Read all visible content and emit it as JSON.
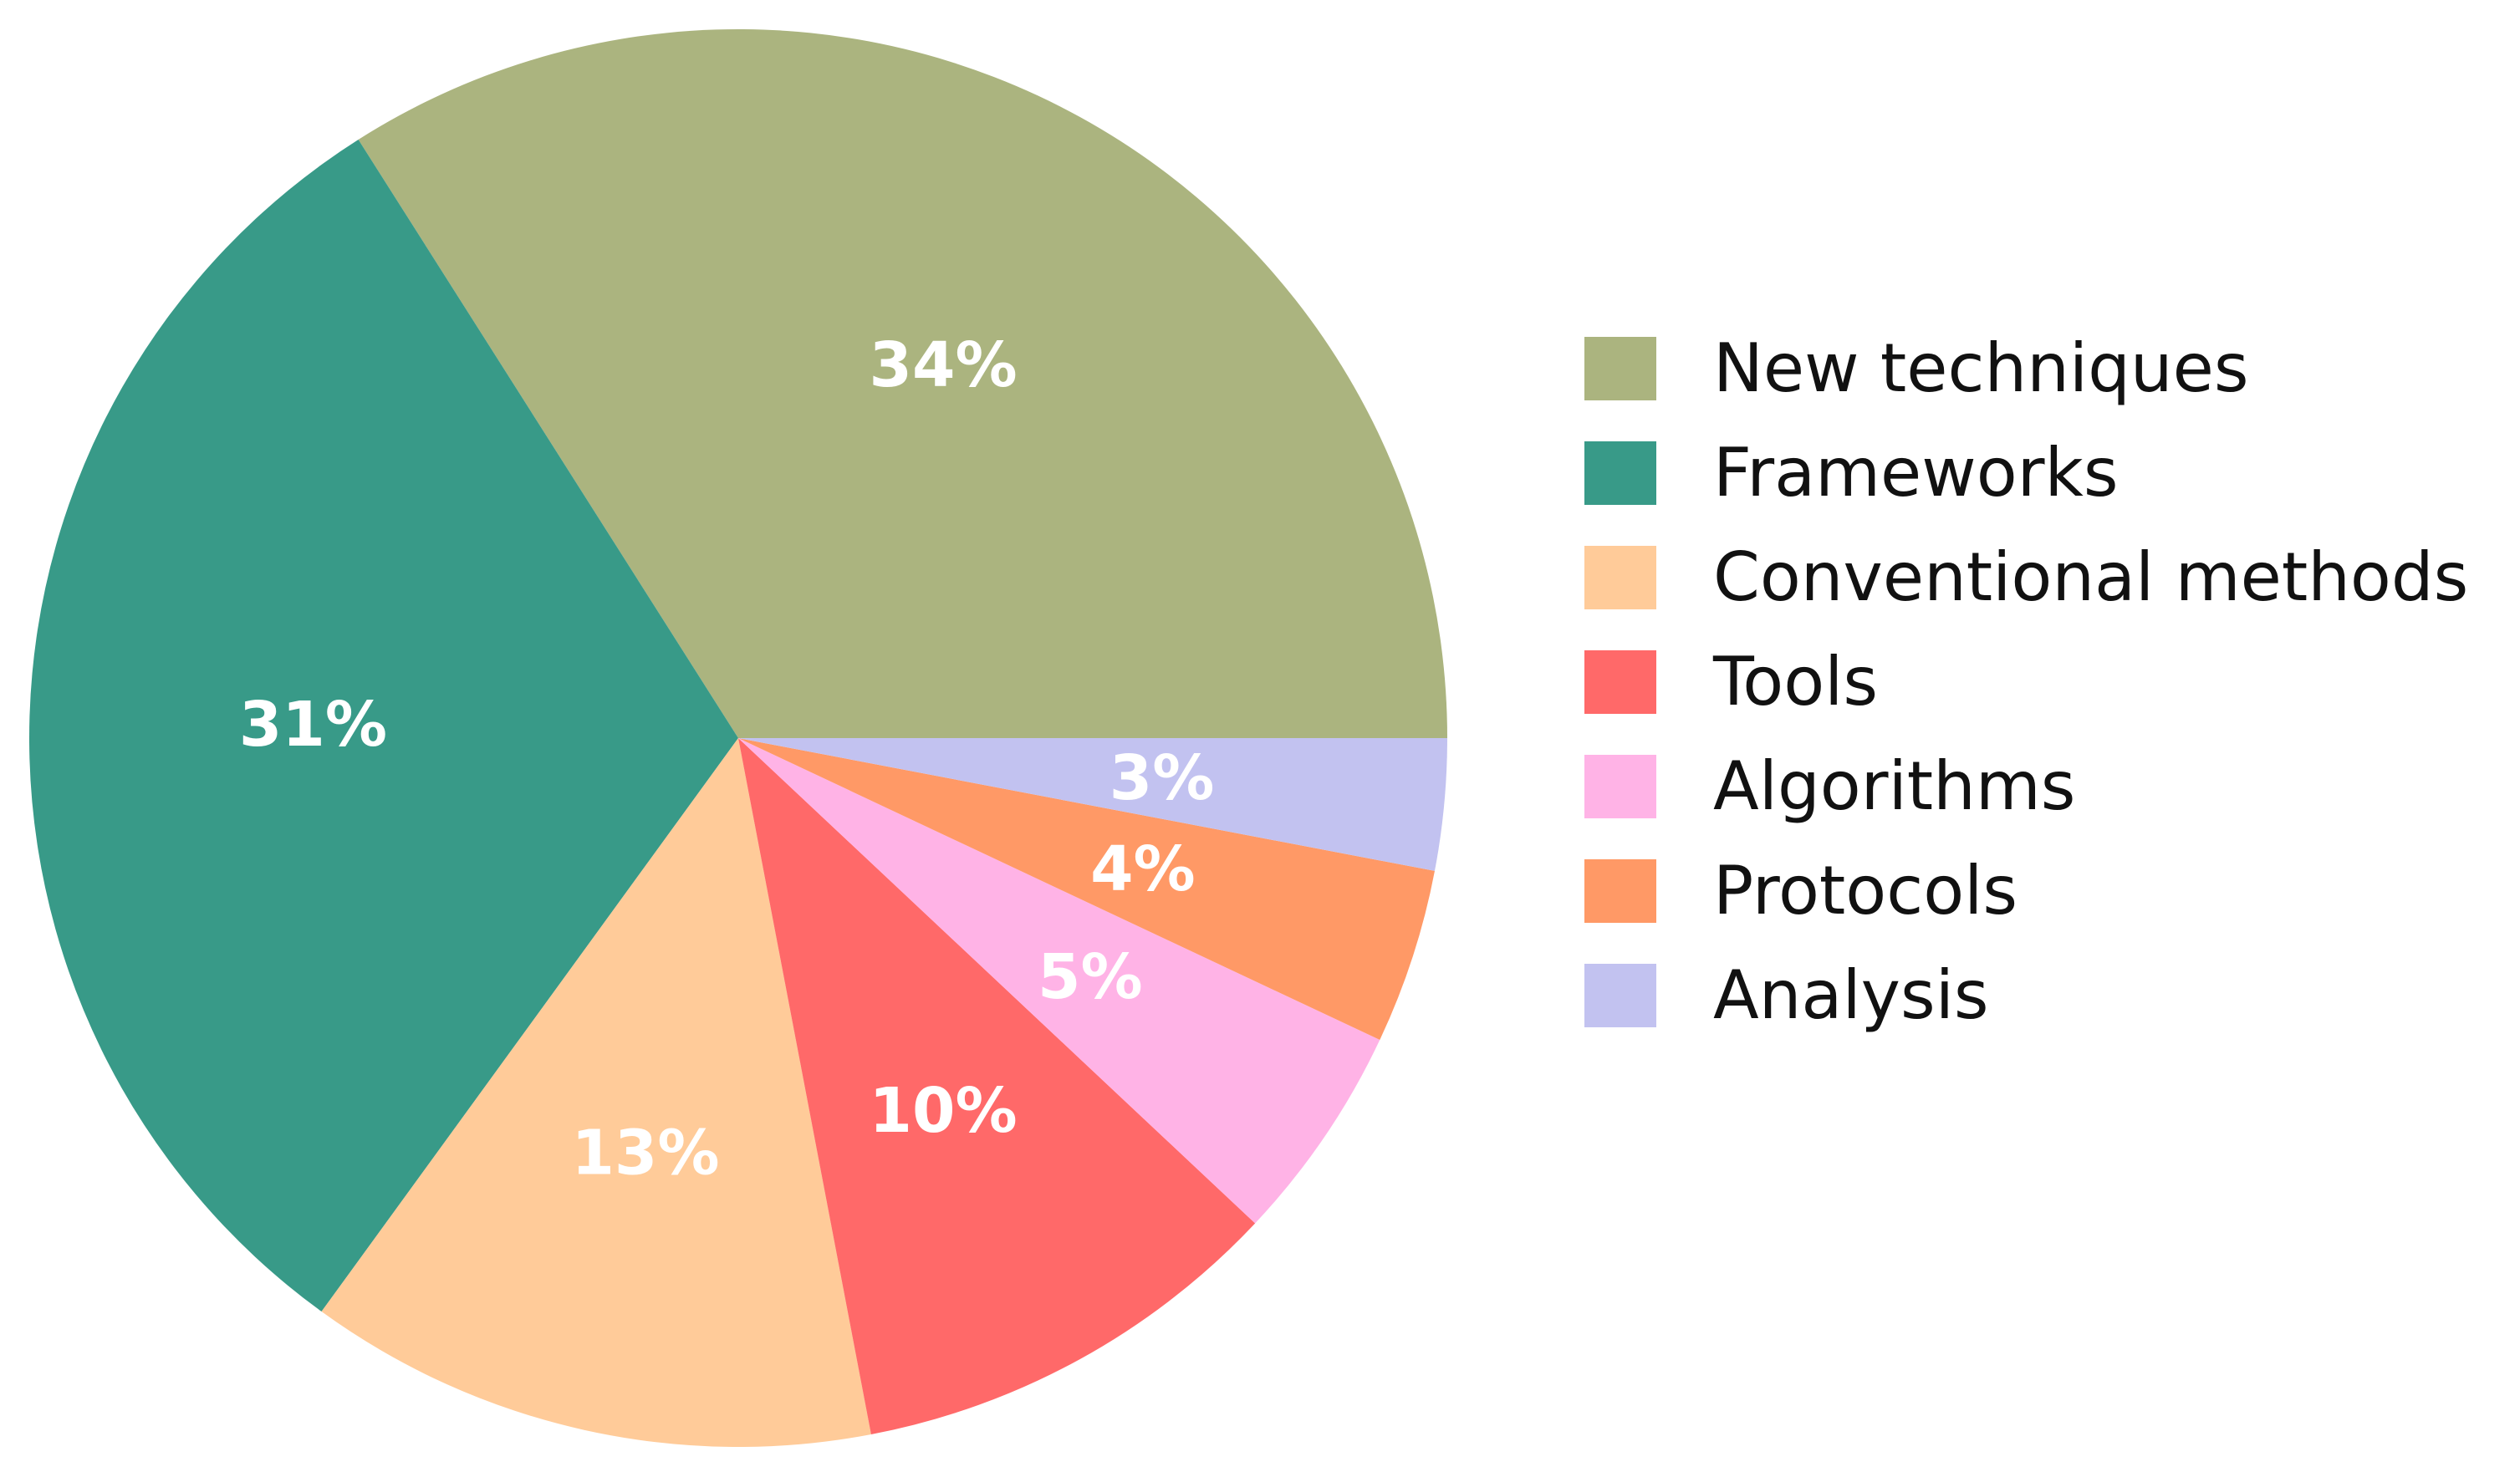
{
  "chart_data": {
    "type": "pie",
    "start_angle_deg": 0,
    "direction": "counterclockwise",
    "slices": [
      {
        "label": "New techniques",
        "value": 34,
        "display": "34%",
        "color": "#abb47f"
      },
      {
        "label": "Frameworks",
        "value": 31,
        "display": "31%",
        "color": "#389a88"
      },
      {
        "label": "Conventional methods",
        "value": 13,
        "display": "13%",
        "color": "#ffcb99"
      },
      {
        "label": "Tools",
        "value": 10,
        "display": "10%",
        "color": "#ff6969"
      },
      {
        "label": "Algorithms",
        "value": 5,
        "display": "5%",
        "color": "#ffb3e6"
      },
      {
        "label": "Protocols",
        "value": 4,
        "display": "4%",
        "color": "#ff9966"
      },
      {
        "label": "Analysis",
        "value": 3,
        "display": "3%",
        "color": "#c2c2f0"
      }
    ],
    "legend_position": "right",
    "label_color": "#ffffff"
  }
}
